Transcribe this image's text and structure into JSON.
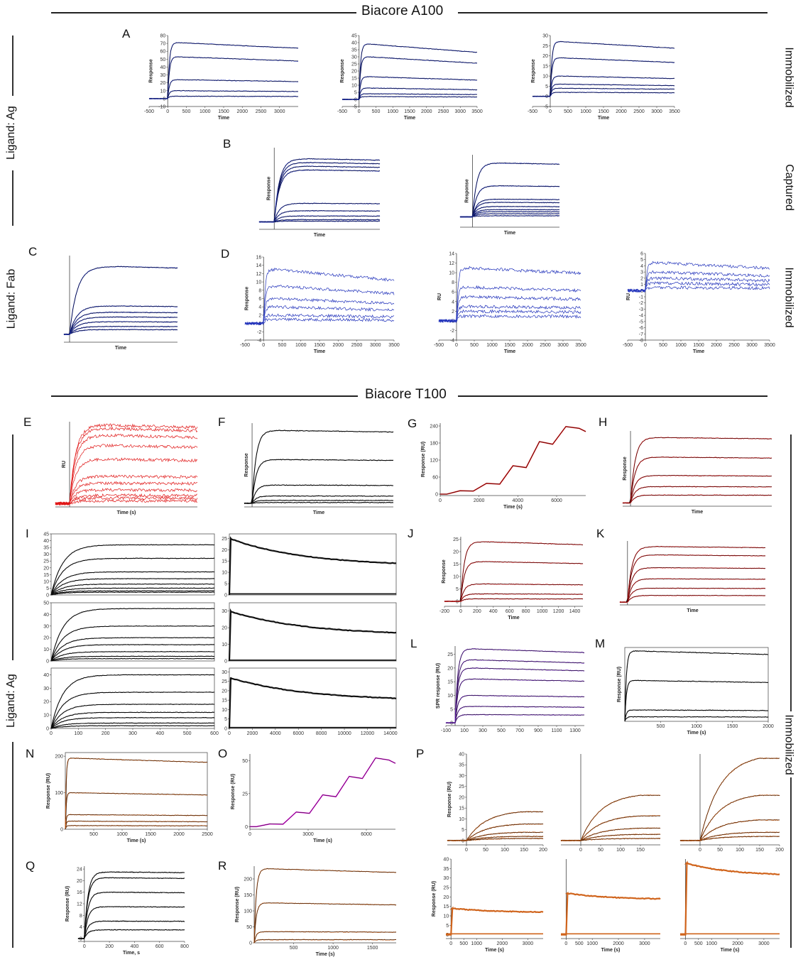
{
  "sections": {
    "top_title": "Biacore A100",
    "bottom_title": "Biacore T100"
  },
  "side_labels": {
    "left_top": "Ligand: Ag",
    "left_mid": "Ligand: Fab",
    "left_bottom": "Ligand: Ag",
    "right_1": "Immobilized",
    "right_2": "Captured",
    "right_3": "Immobilized",
    "right_4": "Immobilized"
  },
  "panel_letters": [
    "A",
    "B",
    "C",
    "D",
    "E",
    "F",
    "G",
    "H",
    "I",
    "J",
    "K",
    "L",
    "M",
    "N",
    "O",
    "P",
    "Q",
    "R"
  ],
  "colors": {
    "blue": "#2233bb",
    "red": "#e01818",
    "black": "#111111",
    "orange": "#d0641c",
    "purple": "#7a30c8",
    "magenta": "#e020e0"
  },
  "chart_data": [
    {
      "id": "A1",
      "type": "line",
      "xlabel": "Time",
      "ylabel": "Response",
      "xticks": [
        "-500",
        "0",
        "500",
        "1000",
        "1500",
        "2000",
        "2500",
        "3000"
      ],
      "yticks": [
        "-10",
        "0",
        "10",
        "20",
        "30",
        "40",
        "50",
        "60",
        "70",
        "80"
      ],
      "xlim": [
        -500,
        3500
      ],
      "ylim": [
        -10,
        80
      ],
      "inject": [
        0,
        300
      ],
      "plateaus": [
        71,
        53,
        24,
        10,
        3
      ],
      "decay": 0.1,
      "color": "blue"
    },
    {
      "id": "A2",
      "type": "line",
      "xlabel": "Time",
      "ylabel": "Response",
      "xticks": [
        "-500",
        "0",
        "500",
        "1000",
        "1500",
        "2000",
        "2500",
        "3000",
        "3500"
      ],
      "yticks": [
        "-5",
        "0",
        "5",
        "10",
        "15",
        "20",
        "25",
        "30",
        "35",
        "40",
        "45"
      ],
      "xlim": [
        -500,
        3500
      ],
      "ylim": [
        -5,
        45
      ],
      "inject": [
        0,
        300
      ],
      "plateaus": [
        39,
        30,
        16,
        8,
        4,
        2
      ],
      "decay": 0.15,
      "color": "blue"
    },
    {
      "id": "A3",
      "type": "line",
      "xlabel": "Time",
      "ylabel": "Response",
      "xticks": [
        "-500",
        "0",
        "500",
        "1000",
        "1500",
        "2000",
        "2500",
        "3000",
        "3500"
      ],
      "yticks": [
        "-5",
        "0",
        "5",
        "10",
        "15",
        "20",
        "25",
        "30"
      ],
      "xlim": [
        -500,
        3500
      ],
      "ylim": [
        -5,
        30
      ],
      "inject": [
        0,
        300
      ],
      "plateaus": [
        27,
        19,
        10,
        6,
        4,
        2
      ],
      "decay": 0.12,
      "color": "blue"
    },
    {
      "id": "B1",
      "type": "line",
      "xlabel": "Time",
      "ylabel": "Response",
      "xlim": [
        -50,
        350
      ],
      "ylim": [
        -10,
        100
      ],
      "inject": [
        0,
        120
      ],
      "plateaus": [
        85,
        80,
        75,
        70,
        25,
        15,
        8,
        3,
        1
      ],
      "decay": 0.02,
      "color": "blue"
    },
    {
      "id": "B2",
      "type": "line",
      "xlabel": "Time",
      "ylabel": "Response",
      "xlim": [
        -50,
        350
      ],
      "ylim": [
        -10,
        60
      ],
      "inject": [
        0,
        120
      ],
      "plateaus": [
        52,
        30,
        17,
        14,
        10,
        7,
        5,
        3,
        1
      ],
      "decay": 0.02,
      "color": "blue"
    },
    {
      "id": "C",
      "type": "line",
      "xlabel": "Time",
      "ylabel": "",
      "xlim": [
        -20,
        380
      ],
      "ylim": [
        -5,
        50
      ],
      "inject": [
        0,
        180
      ],
      "plateaus": [
        43,
        18,
        14,
        11,
        8,
        5,
        3
      ],
      "decay": 0.02,
      "color": "blue"
    },
    {
      "id": "D1",
      "type": "line",
      "xlabel": "Time",
      "ylabel": "Response",
      "xticks": [
        "-500",
        "0",
        "500",
        "1000",
        "1500",
        "2000",
        "2500",
        "3000",
        "3500"
      ],
      "yticks": [
        "-4",
        "-2",
        "0",
        "2",
        "4",
        "6",
        "8",
        "10",
        "12",
        "14",
        "16"
      ],
      "xlim": [
        -500,
        3500
      ],
      "ylim": [
        -4,
        16
      ],
      "inject": [
        0,
        300
      ],
      "plateaus": [
        13,
        9,
        6,
        4,
        2,
        1
      ],
      "decay": 0.2,
      "color": "blue",
      "noisy": true
    },
    {
      "id": "D2",
      "type": "line",
      "xlabel": "Time",
      "ylabel": "RU",
      "xticks": [
        "-500",
        "0",
        "500",
        "1000",
        "1500",
        "2000",
        "2500",
        "3000",
        "3500"
      ],
      "yticks": [
        "-4",
        "-2",
        "0",
        "2",
        "4",
        "6",
        "8",
        "10",
        "12",
        "14"
      ],
      "xlim": [
        -500,
        3500
      ],
      "ylim": [
        -4,
        14
      ],
      "inject": [
        0,
        300
      ],
      "plateaus": [
        11,
        7,
        5,
        3,
        2,
        1
      ],
      "decay": 0.1,
      "color": "blue",
      "noisy": true
    },
    {
      "id": "D3",
      "type": "line",
      "xlabel": "Time",
      "ylabel": "RU",
      "xticks": [
        "-500",
        "0",
        "500",
        "1000",
        "1500",
        "2000",
        "2500",
        "3000",
        "3500"
      ],
      "yticks": [
        "-8",
        "-7",
        "-6",
        "-5",
        "-4",
        "-3",
        "-2",
        "-1",
        "0",
        "1",
        "2",
        "3",
        "4",
        "5",
        "6"
      ],
      "xlim": [
        -500,
        3500
      ],
      "ylim": [
        -8,
        6
      ],
      "inject": [
        0,
        300
      ],
      "plateaus": [
        4.5,
        3,
        2,
        1.2,
        0.5
      ],
      "decay": 0.2,
      "color": "blue",
      "noisy": true
    },
    {
      "id": "E",
      "type": "line",
      "xlabel": "Time (s)",
      "ylabel": "RU",
      "xlim": [
        -50,
        450
      ],
      "ylim": [
        -5,
        120
      ],
      "inject": [
        0,
        150
      ],
      "plateaus": [
        115,
        110,
        100,
        85,
        65,
        40,
        30,
        20,
        12,
        8,
        4
      ],
      "decay": 0.03,
      "color": "red",
      "noisy": true
    },
    {
      "id": "F",
      "type": "line",
      "xlabel": "Time",
      "ylabel": "Response",
      "xlim": [
        -50,
        900
      ],
      "ylim": [
        -5,
        110
      ],
      "inject": [
        0,
        180
      ],
      "plateaus": [
        100,
        60,
        25,
        10,
        4,
        1
      ],
      "decay": 0.02,
      "color": "black"
    },
    {
      "id": "G",
      "type": "line",
      "xlabel": "Time (s)",
      "ylabel": "Response (RU)",
      "xticks": [
        "0",
        "2000",
        "4000",
        "6000"
      ],
      "yticks": [
        "0",
        "60",
        "120",
        "180",
        "240"
      ],
      "xlim": [
        0,
        7500
      ],
      "ylim": [
        -5,
        250
      ],
      "steps": [
        12,
        38,
        100,
        185,
        238
      ],
      "color": "red"
    },
    {
      "id": "H",
      "type": "line",
      "xlabel": "Time",
      "ylabel": "Response",
      "xlim": [
        -50,
        900
      ],
      "ylim": [
        -5,
        110
      ],
      "inject": [
        0,
        200
      ],
      "plateaus": [
        100,
        70,
        42,
        25,
        12
      ],
      "decay": 0.02,
      "color": "red"
    },
    {
      "id": "I1a",
      "type": "line",
      "xlabel": "",
      "ylabel": "",
      "yticks": [
        "0",
        "5",
        "10",
        "15",
        "20",
        "25",
        "30",
        "35",
        "40",
        "45"
      ],
      "xlim": [
        0,
        600
      ],
      "ylim": [
        0,
        45
      ],
      "inject": [
        0,
        300
      ],
      "plateaus": [
        37,
        27,
        17,
        12,
        8,
        5,
        3,
        2
      ],
      "decay": 0.0,
      "color": "black",
      "boxed": true
    },
    {
      "id": "I1b",
      "type": "line",
      "xlabel": "",
      "ylabel": "",
      "yticks": [
        "0",
        "5",
        "10",
        "15",
        "20",
        "25"
      ],
      "xlim": [
        0,
        14500
      ],
      "ylim": [
        0,
        27
      ],
      "dissoc": [
        25,
        14
      ],
      "color": "black",
      "boxed": true
    },
    {
      "id": "I2a",
      "type": "line",
      "xlabel": "",
      "ylabel": "",
      "yticks": [
        "0",
        "10",
        "20",
        "30",
        "40",
        "50"
      ],
      "xlim": [
        0,
        600
      ],
      "ylim": [
        0,
        50
      ],
      "inject": [
        0,
        300
      ],
      "plateaus": [
        45,
        30,
        20,
        14,
        8,
        4,
        2
      ],
      "decay": 0.0,
      "color": "black",
      "boxed": true
    },
    {
      "id": "I2b",
      "type": "line",
      "xlabel": "",
      "ylabel": "",
      "yticks": [
        "0",
        "10",
        "20",
        "30"
      ],
      "xlim": [
        0,
        14500
      ],
      "ylim": [
        0,
        35
      ],
      "dissoc": [
        30,
        17
      ],
      "color": "black",
      "boxed": true
    },
    {
      "id": "I3a",
      "type": "line",
      "xlabel": "",
      "ylabel": "",
      "xticks": [
        "0",
        "100",
        "200",
        "300",
        "400",
        "500",
        "600"
      ],
      "yticks": [
        "0",
        "10",
        "20",
        "30",
        "40"
      ],
      "xlim": [
        0,
        600
      ],
      "ylim": [
        0,
        45
      ],
      "inject": [
        0,
        300
      ],
      "plateaus": [
        40,
        27,
        18,
        12,
        8,
        4,
        2
      ],
      "decay": 0.0,
      "color": "black",
      "boxed": true
    },
    {
      "id": "I3b",
      "type": "line",
      "xlabel": "",
      "ylabel": "",
      "xticks": [
        "0",
        "2000",
        "4000",
        "6000",
        "8000",
        "10000",
        "12000",
        "14000"
      ],
      "yticks": [
        "0",
        "5",
        "10",
        "15",
        "20",
        "25",
        "30"
      ],
      "xlim": [
        0,
        14500
      ],
      "ylim": [
        0,
        32
      ],
      "dissoc": [
        27,
        16
      ],
      "color": "black",
      "boxed": true
    },
    {
      "id": "J",
      "type": "line",
      "xlabel": "Time",
      "ylabel": "Response",
      "xticks": [
        "-200",
        "0",
        "200",
        "400",
        "600",
        "800",
        "1000",
        "1200",
        "1400"
      ],
      "yticks": [
        "0",
        "5",
        "10",
        "15",
        "20",
        "25"
      ],
      "xlim": [
        -200,
        1500
      ],
      "ylim": [
        -2,
        26
      ],
      "inject": [
        0,
        300
      ],
      "plateaus": [
        24,
        16,
        7,
        3,
        1
      ],
      "decay": 0.05,
      "color": "red"
    },
    {
      "id": "K",
      "type": "line",
      "xlabel": "Time",
      "ylabel": "",
      "xlim": [
        -50,
        900
      ],
      "ylim": [
        -5,
        110
      ],
      "inject": [
        0,
        200
      ],
      "plateaus": [
        100,
        85,
        62,
        42,
        25,
        12
      ],
      "decay": 0.02,
      "color": "red"
    },
    {
      "id": "L",
      "type": "line",
      "xlabel": "",
      "ylabel": "SPR response (RU)",
      "xticks": [
        "-100",
        "100",
        "300",
        "500",
        "700",
        "900",
        "1100",
        "1300"
      ],
      "yticks": [
        "0",
        "5",
        "10",
        "15",
        "20",
        "25"
      ],
      "xlim": [
        -100,
        1400
      ],
      "ylim": [
        -1,
        28
      ],
      "inject": [
        0,
        200
      ],
      "plateaus": [
        27,
        23,
        20,
        16,
        10,
        6,
        3
      ],
      "decay": 0.05,
      "color": "purple"
    },
    {
      "id": "M",
      "type": "line",
      "xlabel": "Time (s)",
      "ylabel": "Response (RU)",
      "xticks": [
        "500",
        "1000",
        "1500",
        "2000"
      ],
      "xlim": [
        0,
        2000
      ],
      "ylim": [
        0,
        65
      ],
      "inject": [
        0,
        150
      ],
      "plateaus": [
        62,
        36,
        10,
        4
      ],
      "decay": 0.05,
      "color": "black",
      "boxed": true
    },
    {
      "id": "N",
      "type": "line",
      "xlabel": "Time (s)",
      "ylabel": "Response (RU)",
      "xticks": [
        "500",
        "1000",
        "1500",
        "2000",
        "2500"
      ],
      "yticks": [
        "0",
        "100",
        "200"
      ],
      "xlim": [
        0,
        2500
      ],
      "ylim": [
        0,
        210
      ],
      "inject": [
        0,
        100
      ],
      "plateaus": [
        195,
        100,
        40,
        22,
        10
      ],
      "decay": 0.06,
      "color": "orange",
      "boxed": true
    },
    {
      "id": "O",
      "type": "line",
      "xlabel": "Time (s)",
      "ylabel": "Response (RU)",
      "xticks": [
        "0",
        "3000",
        "6000"
      ],
      "yticks": [
        "0",
        "25",
        "50"
      ],
      "xlim": [
        0,
        7500
      ],
      "ylim": [
        -2,
        55
      ],
      "steps": [
        2,
        11,
        24,
        38,
        52
      ],
      "color": "magenta"
    },
    {
      "id": "P1",
      "type": "line",
      "xlabel": "",
      "ylabel": "Response (RU)",
      "xticks": [
        "0",
        "50",
        "100",
        "150",
        "200"
      ],
      "yticks": [
        "0",
        "5",
        "10",
        "15",
        "20",
        "25",
        "30",
        "35",
        "40"
      ],
      "xlim": [
        -50,
        200
      ],
      "ylim": [
        -2,
        40
      ],
      "inject": [
        0,
        150
      ],
      "plateaus": [
        14,
        8,
        4,
        2,
        1
      ],
      "decay": 0.0,
      "slow": true,
      "color": "orange"
    },
    {
      "id": "P2",
      "type": "line",
      "xlabel": "",
      "ylabel": "",
      "xticks": [
        "0",
        "50",
        "100",
        "150"
      ],
      "xlim": [
        -50,
        200
      ],
      "ylim": [
        -2,
        40
      ],
      "inject": [
        0,
        150
      ],
      "plateaus": [
        22,
        12,
        6,
        3,
        1
      ],
      "decay": 0.0,
      "slow": true,
      "color": "orange"
    },
    {
      "id": "P3",
      "type": "line",
      "xlabel": "",
      "ylabel": "",
      "xticks": [
        "0",
        "50",
        "100",
        "150",
        "200"
      ],
      "xlim": [
        -50,
        200
      ],
      "ylim": [
        -2,
        40
      ],
      "inject": [
        0,
        150
      ],
      "plateaus": [
        40,
        22,
        10,
        4,
        2
      ],
      "decay": 0.0,
      "slow": true,
      "color": "orange"
    },
    {
      "id": "P4",
      "type": "line",
      "xlabel": "Time (s)",
      "ylabel": "Response (RU)",
      "xticks": [
        "0",
        "500",
        "1000",
        "2000",
        "3000"
      ],
      "yticks": [
        "0",
        "5",
        "10",
        "15",
        "20",
        "25",
        "30",
        "35",
        "40"
      ],
      "xlim": [
        -200,
        3600
      ],
      "ylim": [
        -2,
        40
      ],
      "dissoc": [
        14,
        12
      ],
      "color": "orange"
    },
    {
      "id": "P5",
      "type": "line",
      "xlabel": "Time (s)",
      "ylabel": "",
      "xticks": [
        "0",
        "500",
        "1000",
        "2000",
        "3000"
      ],
      "xlim": [
        -200,
        3600
      ],
      "ylim": [
        -2,
        40
      ],
      "dissoc": [
        22,
        19
      ],
      "color": "orange"
    },
    {
      "id": "P6",
      "type": "line",
      "xlabel": "Time (s)",
      "ylabel": "",
      "xticks": [
        "0",
        "500",
        "1000",
        "2000",
        "3000"
      ],
      "xlim": [
        -200,
        3600
      ],
      "ylim": [
        -2,
        40
      ],
      "dissoc": [
        38,
        32
      ],
      "color": "orange"
    },
    {
      "id": "Q",
      "type": "line",
      "xlabel": "Time, s",
      "ylabel": "Response (RU)",
      "xticks": [
        "0",
        "200",
        "400",
        "600",
        "800"
      ],
      "yticks": [
        "0",
        "4",
        "8",
        "12",
        "16",
        "20",
        "24"
      ],
      "xlim": [
        -50,
        800
      ],
      "ylim": [
        -1,
        25
      ],
      "inject": [
        0,
        200
      ],
      "plateaus": [
        23,
        21,
        16,
        11,
        6,
        3
      ],
      "decay": 0.01,
      "color": "black"
    },
    {
      "id": "R",
      "type": "line",
      "xlabel": "Time (s)",
      "ylabel": "Response (RU)",
      "xticks": [
        "500",
        "1000",
        "1500"
      ],
      "yticks": [
        "0",
        "50",
        "100",
        "150",
        "200"
      ],
      "xlim": [
        0,
        1800
      ],
      "ylim": [
        0,
        240
      ],
      "inject": [
        0,
        180
      ],
      "plateaus": [
        232,
        125,
        35,
        10
      ],
      "decay": 0.05,
      "color": "orange"
    }
  ]
}
